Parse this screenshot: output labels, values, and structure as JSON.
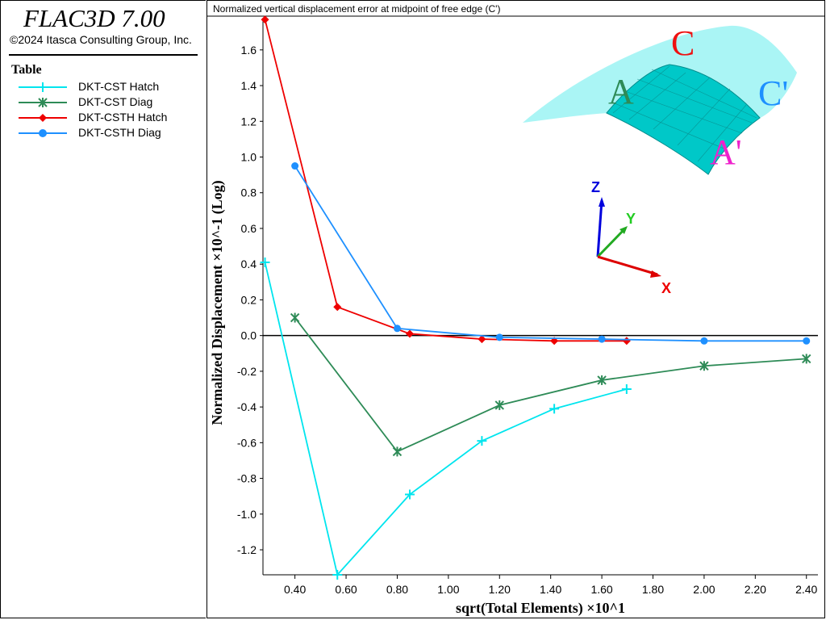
{
  "app": {
    "title": "FLAC3D 7.00",
    "copyright": "©2024 Itasca Consulting Group, Inc."
  },
  "legend": {
    "title": "Table",
    "items": [
      {
        "label": "DKT-CST Hatch",
        "color": "#00e5ee",
        "marker": "plus"
      },
      {
        "label": "DKT-CST Diag",
        "color": "#2e8b57",
        "marker": "asterisk"
      },
      {
        "label": "DKT-CSTH Hatch",
        "color": "#ee0000",
        "marker": "diamond"
      },
      {
        "label": "DKT-CSTH Diag",
        "color": "#1e90ff",
        "marker": "circle"
      }
    ]
  },
  "chart_data": {
    "type": "line",
    "title": "Normalized vertical displacement error at midpoint of free edge (C')",
    "xlabel": "sqrt(Total Elements) ×10^1",
    "ylabel": "Normalized Displacement ×10^-1 (Log)",
    "xlim": [
      0.275,
      2.445
    ],
    "ylim": [
      -1.34,
      1.78
    ],
    "xticks": [
      "0.40",
      "0.60",
      "0.80",
      "1.00",
      "1.20",
      "1.40",
      "1.60",
      "1.80",
      "2.00",
      "2.20",
      "2.40"
    ],
    "yticks": [
      "1.6",
      "1.4",
      "1.2",
      "1.0",
      "0.8",
      "0.6",
      "0.4",
      "0.2",
      "0.0",
      "-0.2",
      "-0.4",
      "-0.6",
      "-0.8",
      "-1.0",
      "-1.2"
    ],
    "zero_line": true,
    "grid": false,
    "series": [
      {
        "name": "DKT-CST Hatch",
        "color": "#00e5ee",
        "marker": "plus",
        "x": [
          0.283,
          0.566,
          0.849,
          1.131,
          1.414,
          1.697
        ],
        "y": [
          0.41,
          -1.34,
          -0.89,
          -0.59,
          -0.41,
          -0.3
        ]
      },
      {
        "name": "DKT-CST Diag",
        "color": "#2e8b57",
        "marker": "asterisk",
        "x": [
          0.4,
          0.8,
          1.2,
          1.6,
          2.0,
          2.4
        ],
        "y": [
          0.1,
          -0.65,
          -0.39,
          -0.25,
          -0.17,
          -0.13
        ]
      },
      {
        "name": "DKT-CSTH Hatch",
        "color": "#ee0000",
        "marker": "diamond",
        "x": [
          0.283,
          0.566,
          0.849,
          1.131,
          1.414,
          1.697
        ],
        "y": [
          1.77,
          0.16,
          0.01,
          -0.02,
          -0.03,
          -0.03
        ]
      },
      {
        "name": "DKT-CSTH Diag",
        "color": "#1e90ff",
        "marker": "circle",
        "x": [
          0.4,
          0.8,
          1.2,
          1.6,
          2.0,
          2.4
        ],
        "y": [
          0.95,
          0.04,
          -0.01,
          -0.02,
          -0.03,
          -0.03
        ]
      }
    ]
  },
  "inset": {
    "point_labels": [
      {
        "text": "C",
        "color": "#ee1111"
      },
      {
        "text": "A",
        "color": "#2e8b57"
      },
      {
        "text": "C'",
        "color": "#1e90ff"
      },
      {
        "text": "A'",
        "color": "#ee22cc"
      }
    ],
    "axes_labels": [
      {
        "text": "Z",
        "color": "#0000dd"
      },
      {
        "text": "Y",
        "color": "#22cc22"
      },
      {
        "text": "X",
        "color": "#ee0000"
      }
    ],
    "surface_color": "#aaf5f5",
    "mesh_color": "#00c8c8"
  }
}
